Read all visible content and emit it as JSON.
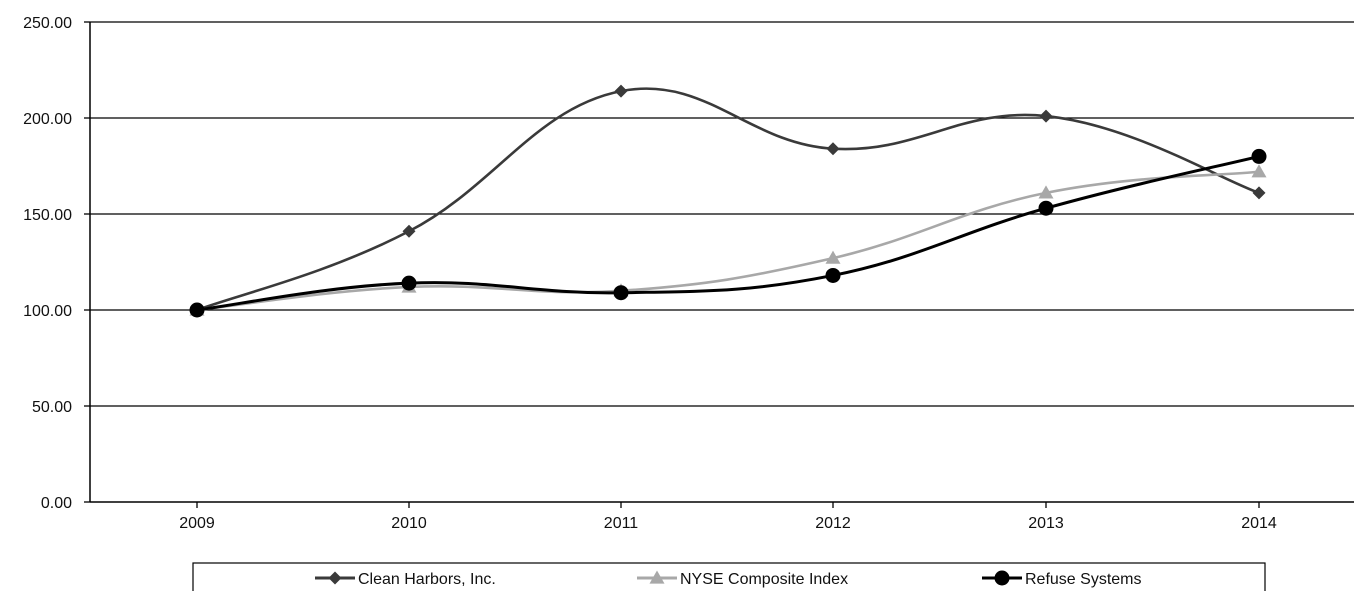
{
  "chart_data": {
    "type": "line",
    "title": "",
    "xlabel": "",
    "ylabel": "",
    "categories": [
      "2009",
      "2010",
      "2011",
      "2012",
      "2013",
      "2014"
    ],
    "ylim": [
      0,
      250
    ],
    "y_ticks": [
      "0.00",
      "50.00",
      "100.00",
      "150.00",
      "200.00",
      "250.00"
    ],
    "y_tick_values": [
      0,
      50,
      100,
      150,
      200,
      250
    ],
    "grid": true,
    "legend_position": "bottom",
    "series": [
      {
        "name": "Clean Harbors, Inc.",
        "values": [
          100,
          141,
          214,
          184,
          201,
          161
        ],
        "color": "#3a3a3a",
        "marker": "diamond"
      },
      {
        "name": "NYSE Composite Index",
        "values": [
          100,
          112,
          110,
          127,
          161,
          172
        ],
        "color": "#a8a8a8",
        "marker": "triangle"
      },
      {
        "name": "Refuse Systems",
        "values": [
          100,
          114,
          109,
          118,
          153,
          180
        ],
        "color": "#000000",
        "marker": "circle"
      }
    ]
  }
}
